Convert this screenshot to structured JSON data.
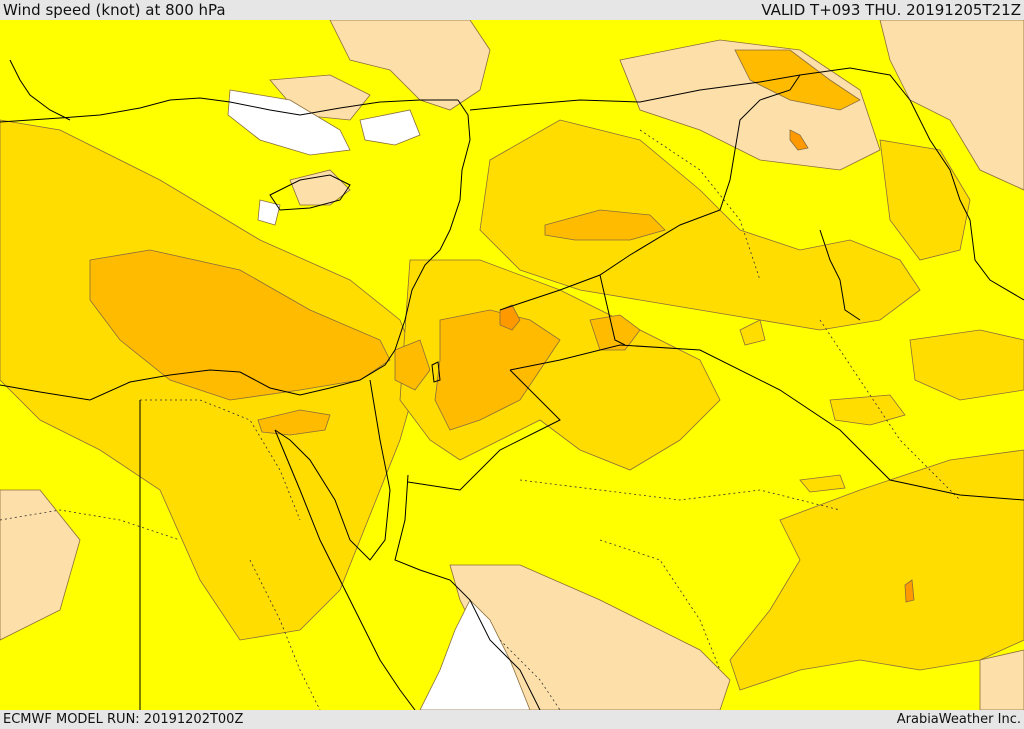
{
  "header": {
    "title": "Wind speed (knot) at 800 hPa",
    "valid": "VALID T+093 THU. 20191205T21Z"
  },
  "footer": {
    "model_run": "ECMWF MODEL RUN: 20191202T00Z",
    "credit": "ArabiaWeather Inc."
  },
  "map": {
    "colors": {
      "background": "#ffff00",
      "low": "#fddfa9",
      "calm": "#ffffff",
      "moderate": "#ffdd00",
      "strong": "#ffbb00",
      "stronger": "#ff9900",
      "border": "#000000",
      "contour": "#8a6d3b"
    }
  }
}
